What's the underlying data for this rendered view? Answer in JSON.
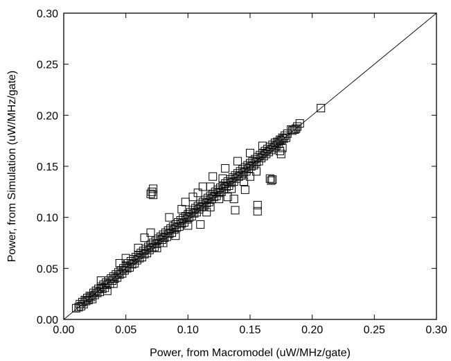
{
  "chart_data": {
    "type": "scatter",
    "title": "",
    "xlabel": "Power, from Macromodel (uW/MHz/gate)",
    "ylabel": "Power, from Simulation (uW/MHz/gate)",
    "xlim": [
      0.0,
      0.3
    ],
    "ylim": [
      0.0,
      0.3
    ],
    "xticks": [
      "0.00",
      "0.05",
      "0.10",
      "0.15",
      "0.20",
      "0.25",
      "0.30"
    ],
    "yticks": [
      "0.00",
      "0.05",
      "0.10",
      "0.15",
      "0.20",
      "0.25",
      "0.30"
    ],
    "grid": false,
    "marker": "open-square",
    "reference_line": {
      "x": [
        0.0,
        0.3
      ],
      "y": [
        0.0,
        0.3
      ]
    },
    "points": [
      [
        0.01,
        0.011
      ],
      [
        0.012,
        0.012
      ],
      [
        0.013,
        0.015
      ],
      [
        0.014,
        0.013
      ],
      [
        0.015,
        0.017
      ],
      [
        0.016,
        0.015
      ],
      [
        0.017,
        0.019
      ],
      [
        0.018,
        0.018
      ],
      [
        0.019,
        0.021
      ],
      [
        0.02,
        0.019
      ],
      [
        0.021,
        0.023
      ],
      [
        0.022,
        0.022
      ],
      [
        0.023,
        0.02
      ],
      [
        0.024,
        0.026
      ],
      [
        0.025,
        0.024
      ],
      [
        0.026,
        0.028
      ],
      [
        0.027,
        0.026
      ],
      [
        0.028,
        0.03
      ],
      [
        0.029,
        0.027
      ],
      [
        0.03,
        0.032
      ],
      [
        0.031,
        0.03
      ],
      [
        0.032,
        0.034
      ],
      [
        0.033,
        0.031
      ],
      [
        0.034,
        0.036
      ],
      [
        0.035,
        0.034
      ],
      [
        0.036,
        0.038
      ],
      [
        0.037,
        0.035
      ],
      [
        0.038,
        0.04
      ],
      [
        0.039,
        0.038
      ],
      [
        0.04,
        0.042
      ],
      [
        0.041,
        0.04
      ],
      [
        0.042,
        0.044
      ],
      [
        0.043,
        0.041
      ],
      [
        0.044,
        0.046
      ],
      [
        0.045,
        0.044
      ],
      [
        0.046,
        0.048
      ],
      [
        0.047,
        0.045
      ],
      [
        0.048,
        0.05
      ],
      [
        0.049,
        0.048
      ],
      [
        0.05,
        0.052
      ],
      [
        0.051,
        0.05
      ],
      [
        0.052,
        0.055
      ],
      [
        0.053,
        0.051
      ],
      [
        0.054,
        0.057
      ],
      [
        0.055,
        0.054
      ],
      [
        0.056,
        0.059
      ],
      [
        0.057,
        0.055
      ],
      [
        0.058,
        0.061
      ],
      [
        0.059,
        0.058
      ],
      [
        0.06,
        0.063
      ],
      [
        0.061,
        0.06
      ],
      [
        0.062,
        0.065
      ],
      [
        0.063,
        0.061
      ],
      [
        0.064,
        0.067
      ],
      [
        0.065,
        0.064
      ],
      [
        0.066,
        0.069
      ],
      [
        0.067,
        0.065
      ],
      [
        0.068,
        0.071
      ],
      [
        0.069,
        0.068
      ],
      [
        0.07,
        0.073
      ],
      [
        0.071,
        0.07
      ],
      [
        0.072,
        0.075
      ],
      [
        0.073,
        0.071
      ],
      [
        0.074,
        0.077
      ],
      [
        0.075,
        0.074
      ],
      [
        0.076,
        0.079
      ],
      [
        0.077,
        0.075
      ],
      [
        0.078,
        0.081
      ],
      [
        0.079,
        0.078
      ],
      [
        0.08,
        0.083
      ],
      [
        0.081,
        0.08
      ],
      [
        0.082,
        0.085
      ],
      [
        0.083,
        0.081
      ],
      [
        0.084,
        0.087
      ],
      [
        0.085,
        0.084
      ],
      [
        0.086,
        0.089
      ],
      [
        0.087,
        0.085
      ],
      [
        0.088,
        0.091
      ],
      [
        0.089,
        0.088
      ],
      [
        0.09,
        0.093
      ],
      [
        0.091,
        0.09
      ],
      [
        0.092,
        0.095
      ],
      [
        0.093,
        0.091
      ],
      [
        0.094,
        0.097
      ],
      [
        0.095,
        0.094
      ],
      [
        0.096,
        0.099
      ],
      [
        0.097,
        0.095
      ],
      [
        0.098,
        0.101
      ],
      [
        0.099,
        0.098
      ],
      [
        0.1,
        0.103
      ],
      [
        0.101,
        0.1
      ],
      [
        0.102,
        0.105
      ],
      [
        0.103,
        0.101
      ],
      [
        0.104,
        0.107
      ],
      [
        0.105,
        0.104
      ],
      [
        0.106,
        0.109
      ],
      [
        0.107,
        0.105
      ],
      [
        0.108,
        0.111
      ],
      [
        0.109,
        0.108
      ],
      [
        0.11,
        0.113
      ],
      [
        0.111,
        0.11
      ],
      [
        0.112,
        0.115
      ],
      [
        0.113,
        0.111
      ],
      [
        0.114,
        0.117
      ],
      [
        0.115,
        0.114
      ],
      [
        0.116,
        0.119
      ],
      [
        0.117,
        0.115
      ],
      [
        0.118,
        0.121
      ],
      [
        0.119,
        0.118
      ],
      [
        0.12,
        0.123
      ],
      [
        0.121,
        0.12
      ],
      [
        0.122,
        0.125
      ],
      [
        0.123,
        0.121
      ],
      [
        0.124,
        0.127
      ],
      [
        0.125,
        0.124
      ],
      [
        0.126,
        0.129
      ],
      [
        0.127,
        0.125
      ],
      [
        0.128,
        0.131
      ],
      [
        0.129,
        0.128
      ],
      [
        0.13,
        0.133
      ],
      [
        0.131,
        0.13
      ],
      [
        0.132,
        0.135
      ],
      [
        0.133,
        0.131
      ],
      [
        0.134,
        0.137
      ],
      [
        0.135,
        0.134
      ],
      [
        0.136,
        0.139
      ],
      [
        0.137,
        0.135
      ],
      [
        0.138,
        0.141
      ],
      [
        0.139,
        0.138
      ],
      [
        0.14,
        0.143
      ],
      [
        0.141,
        0.14
      ],
      [
        0.142,
        0.145
      ],
      [
        0.143,
        0.141
      ],
      [
        0.144,
        0.147
      ],
      [
        0.145,
        0.144
      ],
      [
        0.146,
        0.149
      ],
      [
        0.147,
        0.145
      ],
      [
        0.148,
        0.151
      ],
      [
        0.149,
        0.148
      ],
      [
        0.15,
        0.153
      ],
      [
        0.151,
        0.15
      ],
      [
        0.152,
        0.155
      ],
      [
        0.153,
        0.151
      ],
      [
        0.154,
        0.157
      ],
      [
        0.155,
        0.154
      ],
      [
        0.156,
        0.159
      ],
      [
        0.157,
        0.155
      ],
      [
        0.158,
        0.161
      ],
      [
        0.159,
        0.158
      ],
      [
        0.16,
        0.163
      ],
      [
        0.161,
        0.16
      ],
      [
        0.162,
        0.165
      ],
      [
        0.163,
        0.162
      ],
      [
        0.164,
        0.167
      ],
      [
        0.165,
        0.164
      ],
      [
        0.166,
        0.169
      ],
      [
        0.167,
        0.166
      ],
      [
        0.168,
        0.171
      ],
      [
        0.169,
        0.168
      ],
      [
        0.17,
        0.173
      ],
      [
        0.171,
        0.17
      ],
      [
        0.172,
        0.174
      ],
      [
        0.173,
        0.172
      ],
      [
        0.174,
        0.176
      ],
      [
        0.175,
        0.175
      ],
      [
        0.176,
        0.178
      ],
      [
        0.177,
        0.177
      ],
      [
        0.178,
        0.18
      ],
      [
        0.179,
        0.178
      ],
      [
        0.18,
        0.182
      ],
      [
        0.183,
        0.186
      ],
      [
        0.184,
        0.185
      ],
      [
        0.185,
        0.186
      ],
      [
        0.186,
        0.186
      ],
      [
        0.187,
        0.187
      ],
      [
        0.188,
        0.189
      ],
      [
        0.19,
        0.192
      ],
      [
        0.207,
        0.207
      ],
      [
        0.05,
        0.06
      ],
      [
        0.06,
        0.07
      ],
      [
        0.07,
        0.085
      ],
      [
        0.075,
        0.07
      ],
      [
        0.085,
        0.1
      ],
      [
        0.09,
        0.082
      ],
      [
        0.098,
        0.115
      ],
      [
        0.104,
        0.12
      ],
      [
        0.11,
        0.093
      ],
      [
        0.112,
        0.13
      ],
      [
        0.118,
        0.11
      ],
      [
        0.12,
        0.14
      ],
      [
        0.125,
        0.118
      ],
      [
        0.13,
        0.148
      ],
      [
        0.135,
        0.128
      ],
      [
        0.14,
        0.155
      ],
      [
        0.145,
        0.135
      ],
      [
        0.15,
        0.163
      ],
      [
        0.155,
        0.145
      ],
      [
        0.16,
        0.17
      ],
      [
        0.045,
        0.055
      ],
      [
        0.04,
        0.035
      ],
      [
        0.03,
        0.038
      ],
      [
        0.035,
        0.028
      ],
      [
        0.065,
        0.08
      ],
      [
        0.08,
        0.075
      ],
      [
        0.095,
        0.108
      ],
      [
        0.1,
        0.092
      ],
      [
        0.108,
        0.124
      ],
      [
        0.115,
        0.105
      ],
      [
        0.072,
        0.128
      ],
      [
        0.072,
        0.122
      ],
      [
        0.071,
        0.125
      ],
      [
        0.07,
        0.123
      ],
      [
        0.138,
        0.107
      ],
      [
        0.156,
        0.112
      ],
      [
        0.156,
        0.106
      ],
      [
        0.166,
        0.138
      ],
      [
        0.167,
        0.136
      ],
      [
        0.168,
        0.137
      ],
      [
        0.146,
        0.127
      ],
      [
        0.137,
        0.118
      ],
      [
        0.175,
        0.162
      ],
      [
        0.174,
        0.165
      ],
      [
        0.176,
        0.168
      ],
      [
        0.15,
        0.14
      ],
      [
        0.132,
        0.12
      ],
      [
        0.128,
        0.138
      ],
      [
        0.118,
        0.13
      ]
    ]
  }
}
